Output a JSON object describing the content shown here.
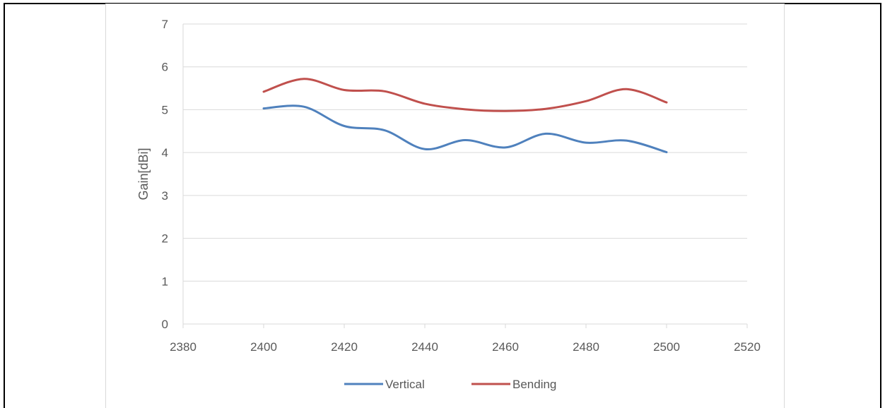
{
  "chart_data": {
    "type": "line",
    "title": "",
    "xlabel": "",
    "ylabel": "Gain[dBi]",
    "xlim": [
      2380,
      2520
    ],
    "ylim": [
      0,
      7
    ],
    "x_ticks": [
      2380,
      2400,
      2420,
      2440,
      2460,
      2480,
      2500,
      2520
    ],
    "y_ticks": [
      0,
      1,
      2,
      3,
      4,
      5,
      6,
      7
    ],
    "grid": "horizontal",
    "legend_position": "bottom",
    "smooth": true,
    "series": [
      {
        "name": "Vertical",
        "color": "#4f81bd",
        "x": [
          2400,
          2410,
          2420,
          2430,
          2440,
          2450,
          2460,
          2470,
          2480,
          2490,
          2500
        ],
        "y": [
          5.03,
          5.07,
          4.62,
          4.52,
          4.08,
          4.29,
          4.12,
          4.44,
          4.23,
          4.28,
          4.01
        ]
      },
      {
        "name": "Bending",
        "color": "#c0504d",
        "x": [
          2400,
          2410,
          2420,
          2430,
          2440,
          2450,
          2460,
          2470,
          2480,
          2490,
          2500
        ],
        "y": [
          5.42,
          5.72,
          5.46,
          5.43,
          5.14,
          5.01,
          4.97,
          5.02,
          5.2,
          5.48,
          5.17
        ]
      }
    ]
  }
}
